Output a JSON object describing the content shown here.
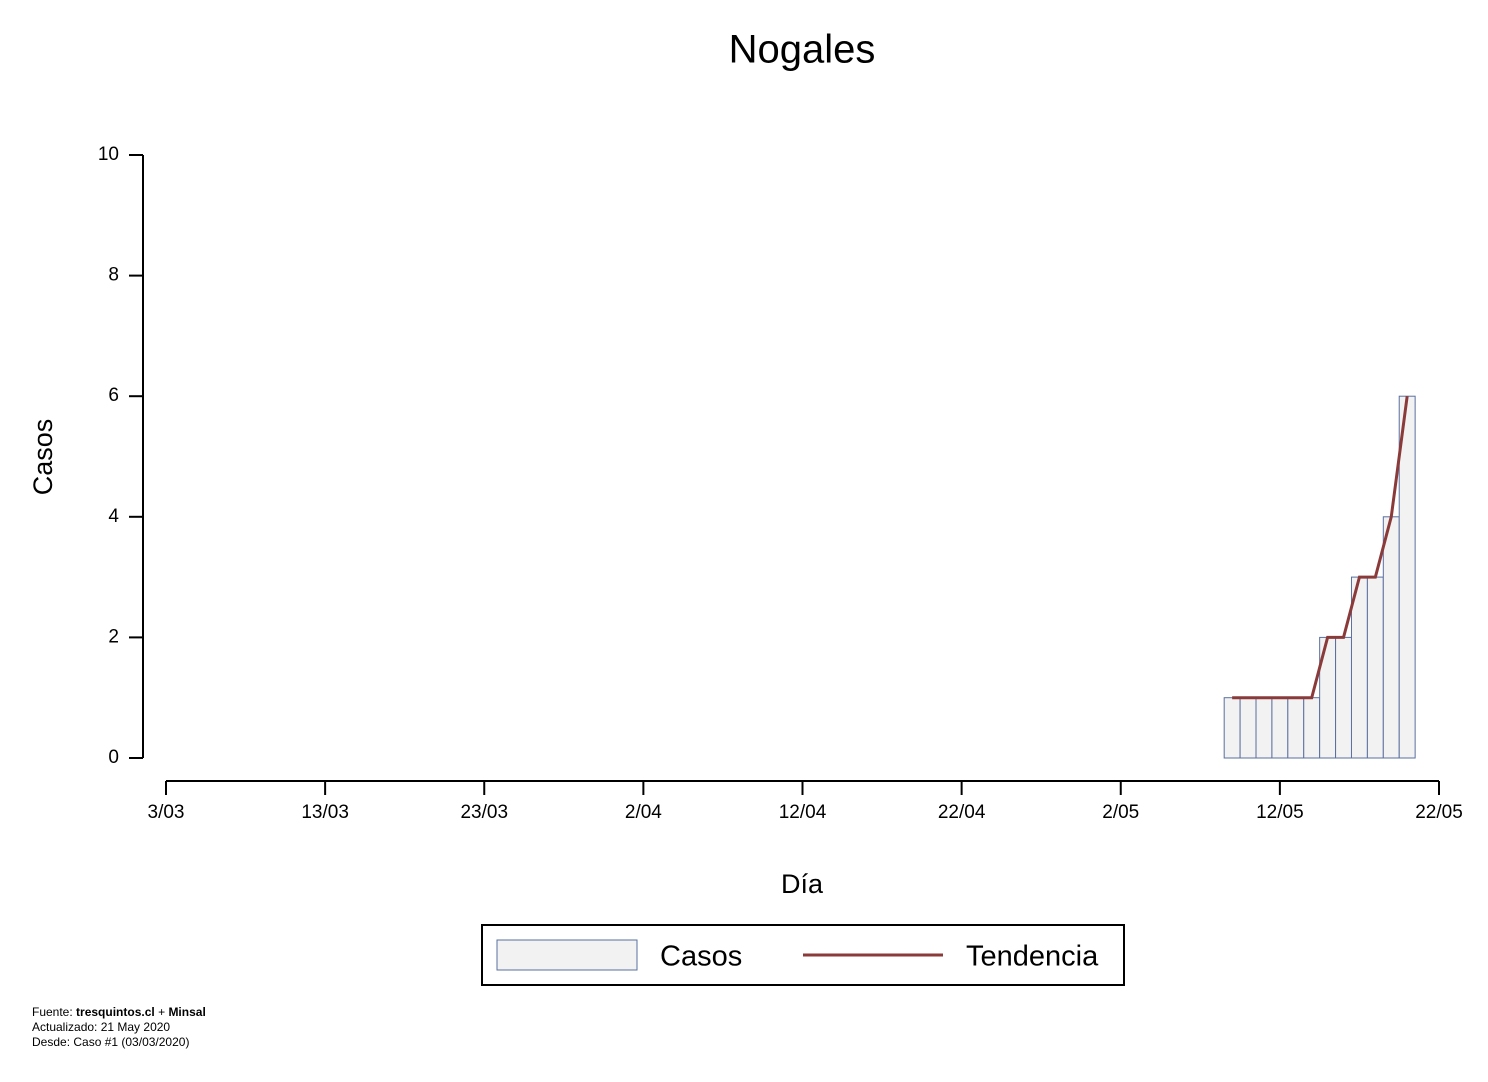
{
  "chart_data": {
    "type": "bar",
    "title": "Nogales",
    "x_label": "Día",
    "y_label": "Casos",
    "x": [
      "9/05",
      "10/05",
      "11/05",
      "12/05",
      "13/05",
      "14/05",
      "15/05",
      "16/05",
      "17/05",
      "18/05",
      "19/05",
      "20/05"
    ],
    "series": [
      {
        "name": "Casos",
        "type": "bar",
        "color": "#f2f2f2",
        "edge_color": "#5a6fa0",
        "values": [
          1,
          1,
          1,
          1,
          1,
          1,
          2,
          2,
          3,
          3,
          4,
          6
        ]
      },
      {
        "name": "Tendencia",
        "type": "line",
        "color": "#8b3a3a",
        "values": [
          1,
          1,
          1,
          1,
          1,
          1,
          2,
          2,
          3,
          3,
          4,
          6
        ]
      }
    ],
    "xlim": [
      "3/03",
      "22/05"
    ],
    "xticks": [
      "3/03",
      "13/03",
      "23/03",
      "2/04",
      "12/04",
      "22/04",
      "2/05",
      "12/05",
      "22/05"
    ],
    "ylim": [
      0,
      10
    ],
    "yticks": [
      0,
      2,
      4,
      6,
      8,
      10
    ],
    "grid": false,
    "legend": "bottom",
    "footer": {
      "source_prefix": "Fuente:",
      "source": [
        "tresquintos.cl",
        "+",
        "Minsal"
      ],
      "notes": [
        "Actualizado: 21 May 2020",
        "Desde: Caso #1  (03/03/2020)"
      ]
    }
  }
}
